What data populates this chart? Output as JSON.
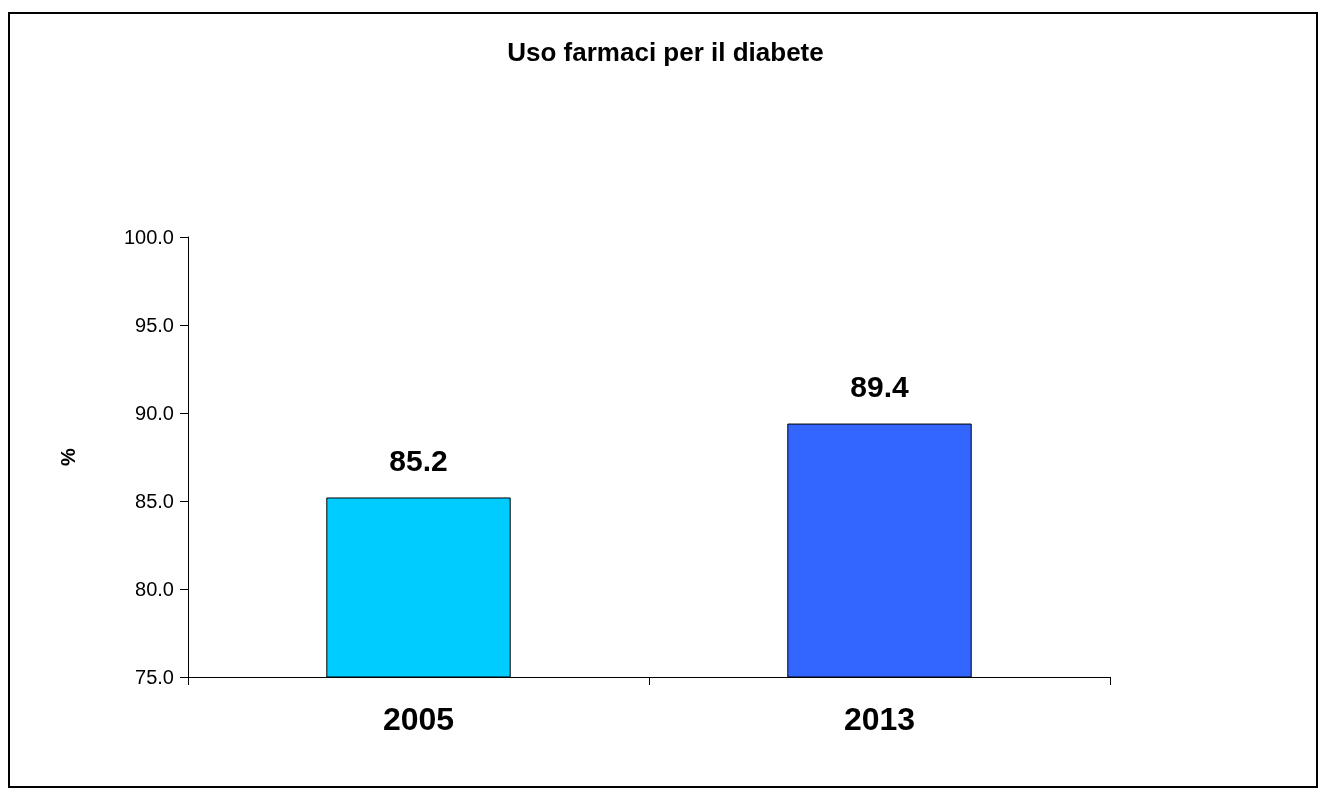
{
  "chart_data": {
    "type": "bar",
    "title": "Uso farmaci per il diabete",
    "ylabel": "%",
    "categories": [
      "2005",
      "2013"
    ],
    "values": [
      85.2,
      89.4
    ],
    "colors": [
      "#00ccff",
      "#3366ff"
    ],
    "ylim": [
      75,
      100
    ],
    "yticks": [
      {
        "value": 75,
        "label": "75.0"
      },
      {
        "value": 80,
        "label": "80.0"
      },
      {
        "value": 85,
        "label": "85.0"
      },
      {
        "value": 90,
        "label": "90.0"
      },
      {
        "value": 95,
        "label": "95.0"
      },
      {
        "value": 100,
        "label": "100.0"
      }
    ],
    "grid": false,
    "data_labels": true
  }
}
